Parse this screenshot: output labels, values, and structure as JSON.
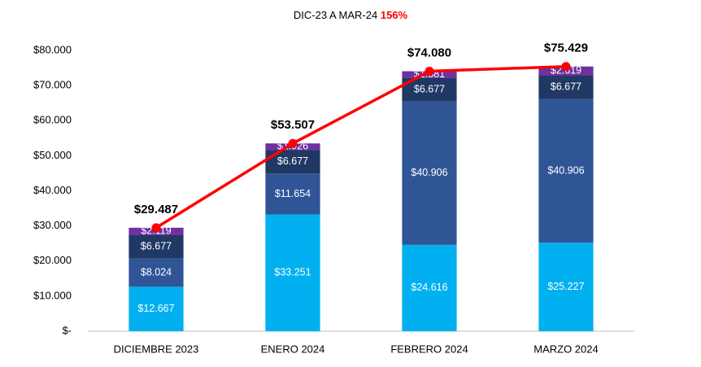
{
  "chart_data": {
    "type": "bar",
    "stacked": true,
    "title": "DIC-23 A MAR-24",
    "title_highlight": "156%",
    "title_highlight_color": "#ff0000",
    "categories": [
      "DICIEMBRE 2023",
      "ENERO 2024",
      "FEBRERO 2024",
      "MARZO 2024"
    ],
    "series": [
      {
        "color": "#00b0f0",
        "values": [
          12667,
          33251,
          24616,
          25227
        ],
        "value_labels": [
          "$12.667",
          "$33.251",
          "$24.616",
          "$25.227"
        ]
      },
      {
        "color": "#2f5597",
        "values": [
          8024,
          11654,
          40906,
          40906
        ],
        "value_labels": [
          "$8.024",
          "$11.654",
          "$40.906",
          "$40.906"
        ]
      },
      {
        "color": "#203864",
        "values": [
          6677,
          6677,
          6677,
          6677
        ],
        "value_labels": [
          "$6.677",
          "$6.677",
          "$6.677",
          "$6.677"
        ]
      },
      {
        "color": "#7030a0",
        "values": [
          2119,
          1926,
          1881,
          2619
        ],
        "value_labels": [
          "$2.119",
          "$1.926",
          "$1.881",
          "$2.619"
        ]
      },
      {
        "type": "line",
        "color": "#ff0000",
        "values": [
          29487,
          53507,
          74080,
          75429
        ],
        "value_labels": [
          "$29.487",
          "$53.507",
          "$74.080",
          "$75.429"
        ]
      }
    ],
    "ylim": [
      0,
      80000
    ],
    "yticks": [
      {
        "value": 0,
        "label": "$-"
      },
      {
        "value": 10000,
        "label": "$10.000"
      },
      {
        "value": 20000,
        "label": "$20.000"
      },
      {
        "value": 30000,
        "label": "$30.000"
      },
      {
        "value": 40000,
        "label": "$40.000"
      },
      {
        "value": 50000,
        "label": "$50.000"
      },
      {
        "value": 60000,
        "label": "$60.000"
      },
      {
        "value": 70000,
        "label": "$70.000"
      },
      {
        "value": 80000,
        "label": "$80.000"
      }
    ],
    "grid": false
  }
}
